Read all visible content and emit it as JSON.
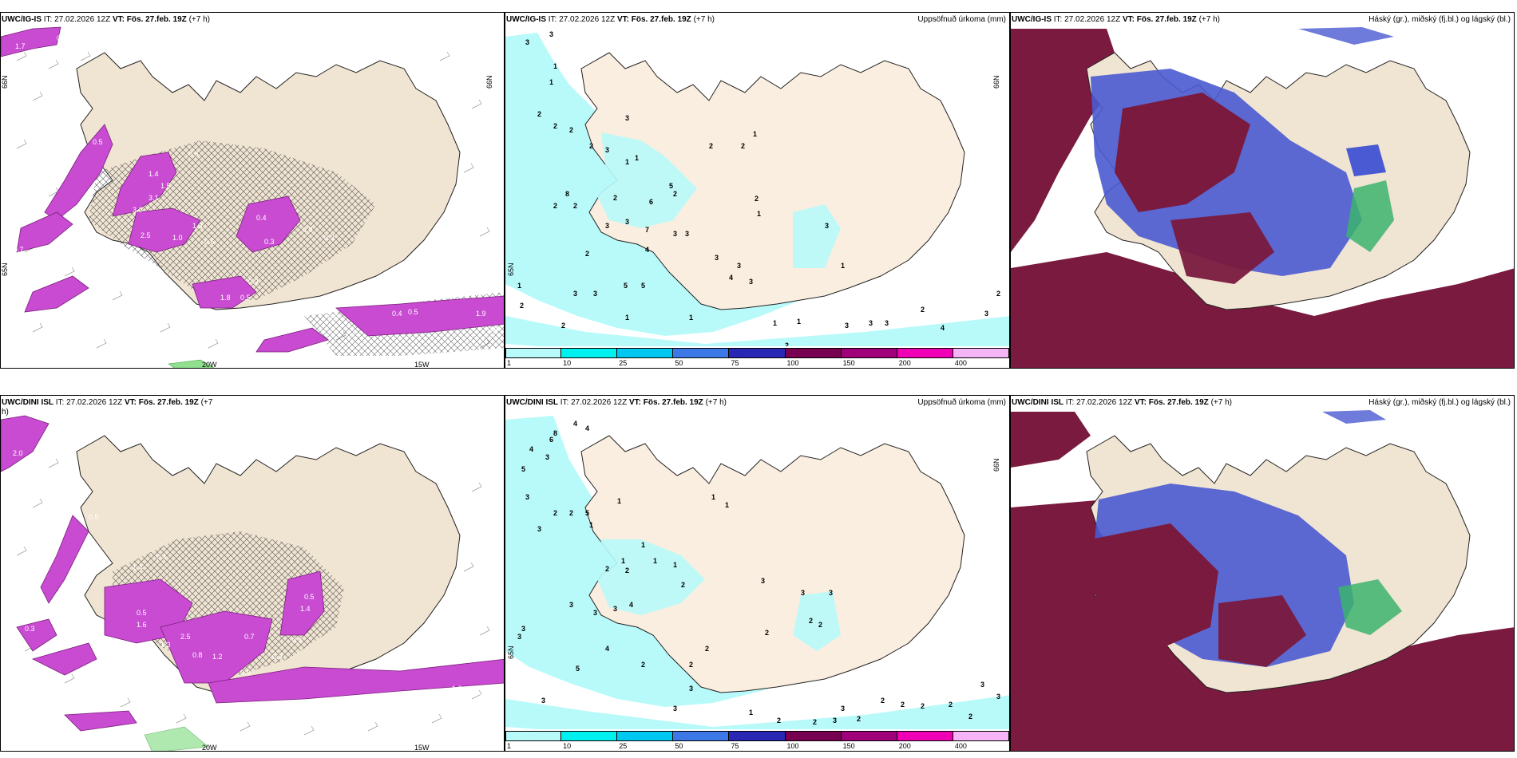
{
  "panels": [
    {
      "id": "p1",
      "source": "UWC/IG-IS",
      "it": "IT: 27.02.2026 12Z",
      "vt": "VT: Fös. 27.feb. 19Z",
      "lead": "(+7 h)",
      "right": "",
      "lat_label": "66N",
      "lat_label2": "65N",
      "lon_label1": "20W",
      "lon_label2": "15W"
    },
    {
      "id": "p2",
      "source": "UWC/IG-IS",
      "it": "IT: 27.02.2026 12Z",
      "vt": "VT: Fös. 27.feb. 19Z",
      "lead": "(+7 h)",
      "right": "Uppsöfnuð úrkoma (mm)",
      "lat_label": "66N",
      "lat_label2": "65N"
    },
    {
      "id": "p3",
      "source": "UWC/IG-IS",
      "it": "IT: 27.02.2026 12Z",
      "vt": "VT: Fös. 27.feb. 19Z",
      "lead": "(+7 h)",
      "right": "Háský (gr.), miðský (fj.bl.) og lágský (bl.)"
    },
    {
      "id": "p4",
      "source": "UWC/DINI ISL",
      "it": "IT: 27.02.2026 12Z",
      "vt": "VT: Fös. 27.feb. 19Z",
      "lead": "(+7 h)",
      "right": "",
      "lon_label1": "20W",
      "lon_label2": "15W"
    },
    {
      "id": "p5",
      "source": "UWC/DINI ISL",
      "it": "IT: 27.02.2026 12Z",
      "vt": "VT: Fös. 27.feb. 19Z",
      "lead": "(+7 h)",
      "right": "Uppsöfnuð úrkoma (mm)",
      "lat_label": "66N",
      "lat_label2": "65N"
    },
    {
      "id": "p6",
      "source": "UWC/DINI ISL",
      "it": "IT: 27.02.2026 12Z",
      "vt": "VT: Fös. 27.feb. 19Z",
      "lead": "(+7 h)",
      "right": "Háský (gr.), miðský (fj.bl.) og lágský (bl.)"
    }
  ],
  "colorbar": {
    "ticks": [
      "1",
      "10",
      "25",
      "50",
      "75",
      "100",
      "150",
      "200",
      "400"
    ],
    "colors": [
      "#b8fafa",
      "#00f0f0",
      "#00c8f0",
      "#3c78e6",
      "#2828b4",
      "#780050",
      "#a0007a",
      "#f000b4",
      "#f5b4f5"
    ]
  },
  "precip_p2": [
    "3",
    "3",
    "1",
    "1",
    "2",
    "2",
    "2",
    "3",
    "2",
    "3",
    "1",
    "1",
    "5",
    "6",
    "2",
    "8",
    "2",
    "2",
    "3",
    "3",
    "7",
    "4",
    "5",
    "5",
    "3",
    "2",
    "1",
    "2",
    "2",
    "2",
    "3",
    "3",
    "1",
    "1",
    "2",
    "2",
    "1",
    "3",
    "3",
    "4",
    "3",
    "3",
    "1",
    "1",
    "3",
    "3",
    "3",
    "2",
    "4",
    "3",
    "2",
    "2",
    "1",
    "2",
    "1",
    "3"
  ],
  "precip_p5": [
    "4",
    "4",
    "6",
    "8",
    "4",
    "5",
    "3",
    "3",
    "2",
    "2",
    "5",
    "3",
    "1",
    "1",
    "1",
    "1",
    "1",
    "1",
    "2",
    "2",
    "2",
    "3",
    "3",
    "3",
    "4",
    "4",
    "3",
    "5",
    "2",
    "3",
    "3",
    "3",
    "2",
    "2",
    "1",
    "1",
    "3",
    "2",
    "2",
    "2",
    "3",
    "3",
    "3",
    "2",
    "2",
    "2",
    "2",
    "2",
    "1",
    "3",
    "3",
    "2",
    "2",
    "3",
    "2",
    "3"
  ],
  "conv_p1": [
    "1.7",
    "0.3",
    "0.5",
    "0.6",
    "1.4",
    "1.5",
    "3.1",
    "3.0",
    "2.5",
    "1.3",
    "1.0",
    "0.3",
    "0.4",
    "0.7",
    "0.3",
    "0.8",
    "0.6",
    "0.3",
    "0.5",
    "1.8",
    "0.6",
    "0.4",
    "0.5",
    "1.9",
    "0.8",
    "0.6",
    "0.4",
    "0.3"
  ],
  "conv_p4": [
    "0.4",
    "2.0",
    "0.5",
    "0.8",
    "1.4",
    "0.4",
    "0.5",
    "1.6",
    "2.5",
    "1.3",
    "0.8",
    "1.2",
    "0.7",
    "1.4",
    "0.3",
    "0.4",
    "0.5",
    "0.8",
    "1.0",
    "1.7",
    "0.6",
    "1.1",
    "0.9",
    "0.3"
  ]
}
